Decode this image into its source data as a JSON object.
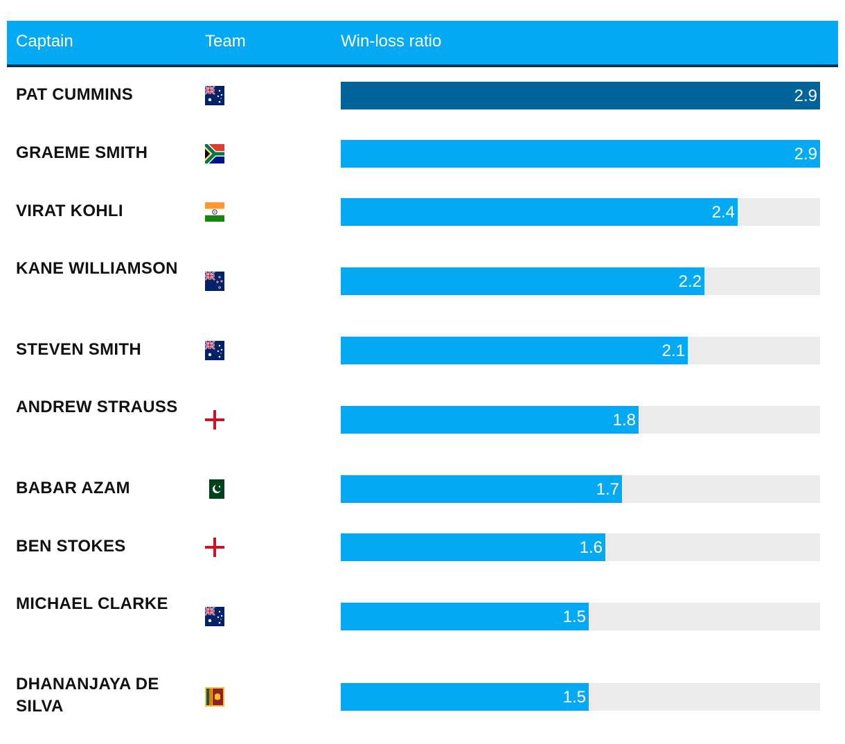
{
  "headers": {
    "captain": "Captain",
    "team": "Team",
    "ratio": "Win-loss ratio"
  },
  "colors": {
    "header": "#04a9f4",
    "bar": "#04a9f4",
    "bar_highlight": "#006399",
    "track": "#ebebeb"
  },
  "chart_data": {
    "type": "bar",
    "orientation": "horizontal",
    "title": "",
    "xlabel": "Win-loss ratio",
    "xlim": [
      0,
      2.9
    ],
    "categories": [
      "PAT CUMMINS",
      "GRAEME SMITH",
      "VIRAT KOHLI",
      "KANE WILLIAMSON",
      "STEVEN SMITH",
      "ANDREW STRAUSS",
      "BABAR AZAM",
      "BEN STOKES",
      "MICHAEL CLARKE",
      "DHANANJAYA DE SILVA"
    ],
    "values": [
      2.9,
      2.9,
      2.4,
      2.2,
      2.1,
      1.8,
      1.7,
      1.6,
      1.5,
      1.5
    ],
    "value_labels": [
      "2.9",
      "2.9",
      "2.4",
      "2.2",
      "2.1",
      "1.8",
      "1.7",
      "1.6",
      "1.5",
      "1.5"
    ],
    "teams": [
      "australia",
      "south-africa",
      "india",
      "new-zealand",
      "australia",
      "england",
      "pakistan",
      "england",
      "australia",
      "sri-lanka"
    ],
    "highlighted": [
      true,
      false,
      false,
      false,
      false,
      false,
      false,
      false,
      false,
      false
    ]
  }
}
